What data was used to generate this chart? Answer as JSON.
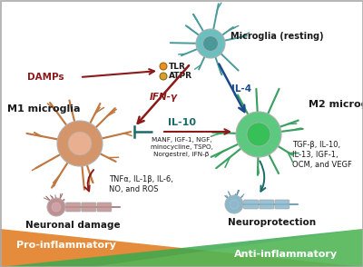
{
  "bg_color": "#ffffff",
  "resting_label": "Microglia (resting)",
  "m1_label": "M1 microglia",
  "m2_label": "M2 microglia",
  "damps_label": "DAMPs",
  "tlr_label": "TLR",
  "atpr_label": "ATPR",
  "ifng_label": "IFN-γ",
  "il4_label": "IL-4",
  "il10_label": "IL-10",
  "neuronal_label": "Neuronal damage",
  "neuroprot_label": "Neuroprotection",
  "pro_label": "Pro-inflammatory",
  "anti_label": "Anti-inflammatory",
  "m1_factors": "TNFα, IL-1β, IL-6,\nNO, and ROS",
  "m2_factors": "TGF-β, IL-10,\nIL-13, IGF-1,\nOCM, and VEGF",
  "drugs_label": "MANF, IGF-1, NGF,\nminocycline, TSPO,\nNorgestrel, IFN-β",
  "resting_color": "#6BBFBF",
  "resting_branch": "#4A9A9A",
  "m1_color": "#D4956A",
  "m1_branch": "#C07840",
  "m2_color": "#5DC880",
  "m2_branch": "#3AA060",
  "neuron_left_color": "#C09090",
  "neuron_left_branch": "#A07070",
  "neuron_right_color": "#88B8CC",
  "neuron_right_branch": "#6090A8",
  "arrow_red": "#8B1A1A",
  "arrow_blue": "#1A4A8B",
  "arrow_teal": "#1A6A6A",
  "pro_color_l": "#E07818",
  "pro_color_r": "#F0B888",
  "anti_color_l": "#80D060",
  "anti_color_r": "#3AAA50",
  "text_dark": "#1a1a1a",
  "tlr_dot": "#E89020",
  "atpr_dot": "#D4A030"
}
